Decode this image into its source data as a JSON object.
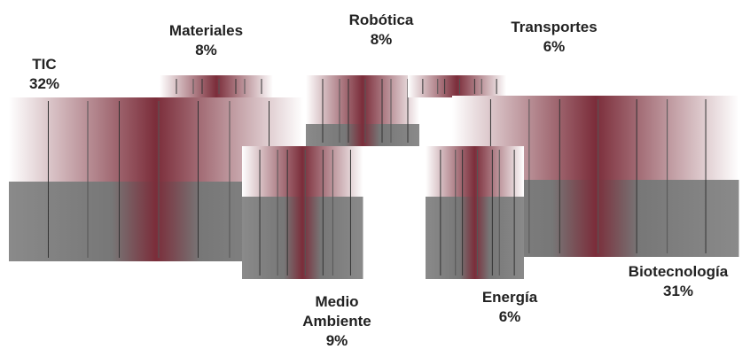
{
  "chart_data": {
    "type": "pie",
    "categories": [
      "TIC",
      "Materiales",
      "Robótica",
      "Transportes",
      "Biotecnología",
      "Energía",
      "Medio Ambiente"
    ],
    "values": [
      32,
      8,
      8,
      6,
      31,
      6,
      9
    ],
    "value_labels": [
      "32%",
      "8%",
      "8%",
      "6%",
      "31%",
      "6%",
      "9%"
    ],
    "color": "#7b2d3a"
  }
}
